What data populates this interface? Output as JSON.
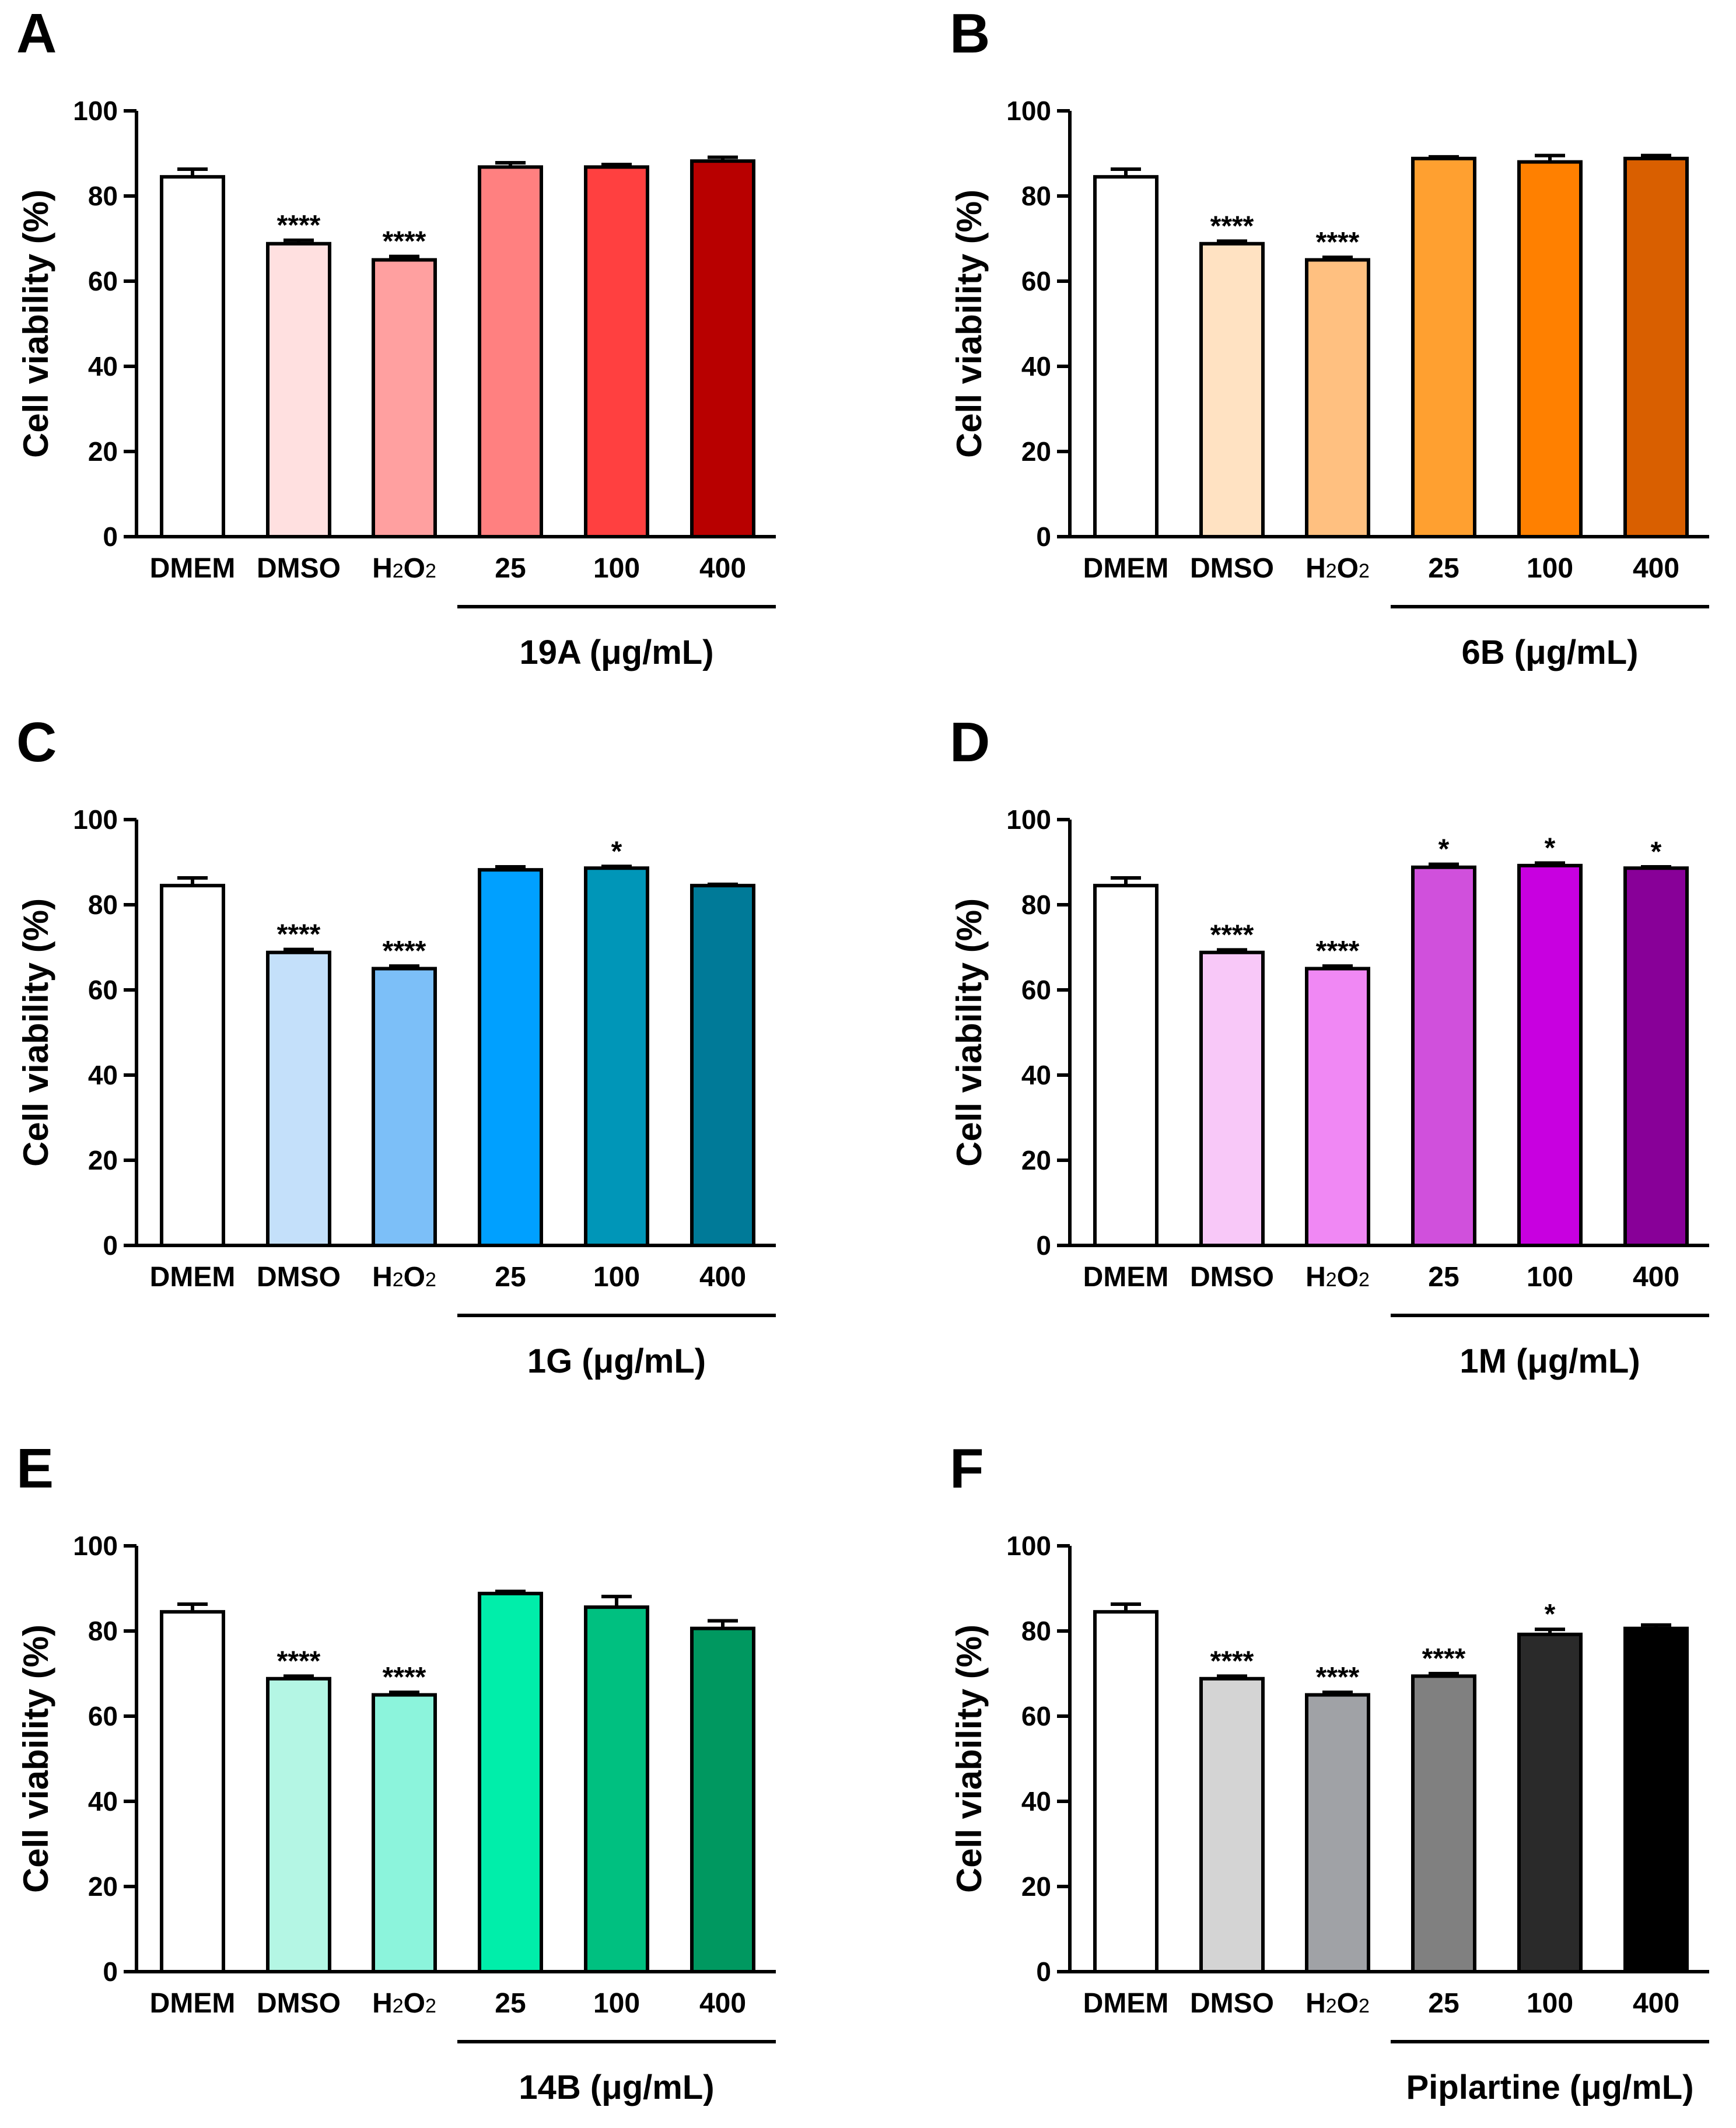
{
  "chart_data": [
    {
      "type": "bar",
      "panel": "A",
      "categories": [
        "DMEM",
        "DMSO",
        "H2O2",
        "25",
        "100",
        "400"
      ],
      "values": [
        84.5,
        68.8,
        65.0,
        86.8,
        86.8,
        88.2
      ],
      "errors": [
        1.8,
        0.8,
        0.8,
        1.0,
        0.6,
        0.9
      ],
      "significance": [
        "",
        "****",
        "****",
        "",
        "",
        ""
      ],
      "colors": [
        "#ffffff",
        "#ffe0e0",
        "#ffa0a0",
        "#ff8080",
        "#ff4040",
        "#b80000"
      ],
      "group_label": "19A (μg/mL)",
      "xlabel": "",
      "ylabel": "Cell viability (%)",
      "ylim": [
        0,
        100
      ],
      "yticks": [
        "0",
        "20",
        "40",
        "60",
        "80",
        "100"
      ]
    },
    {
      "type": "bar",
      "panel": "B",
      "categories": [
        "DMEM",
        "DMSO",
        "H2O2",
        "25",
        "100",
        "400"
      ],
      "values": [
        84.5,
        68.8,
        65.0,
        88.8,
        88.0,
        88.8
      ],
      "errors": [
        1.8,
        0.6,
        0.6,
        0.4,
        1.5,
        0.7
      ],
      "significance": [
        "",
        "****",
        "****",
        "",
        "",
        ""
      ],
      "colors": [
        "#ffffff",
        "#ffe2c2",
        "#ffc080",
        "#ffa030",
        "#ff8000",
        "#d95f00"
      ],
      "group_label": "6B (μg/mL)",
      "xlabel": "",
      "ylabel": "Cell viability (%)",
      "ylim": [
        0,
        100
      ],
      "yticks": [
        "0",
        "20",
        "40",
        "60",
        "80",
        "100"
      ]
    },
    {
      "type": "bar",
      "panel": "C",
      "categories": [
        "DMEM",
        "DMSO",
        "H2O2",
        "25",
        "100",
        "400"
      ],
      "values": [
        84.5,
        68.8,
        65.0,
        88.2,
        88.6,
        84.5
      ],
      "errors": [
        1.8,
        0.7,
        0.6,
        0.7,
        0.4,
        0.3
      ],
      "significance": [
        "",
        "****",
        "****",
        "",
        "*",
        ""
      ],
      "colors": [
        "#ffffff",
        "#c4e0fa",
        "#7cbff8",
        "#00a0ff",
        "#0096b8",
        "#007a98"
      ],
      "group_label": "1G (μg/mL)",
      "xlabel": "",
      "ylabel": "Cell viability (%)",
      "ylim": [
        0,
        100
      ],
      "yticks": [
        "0",
        "20",
        "40",
        "60",
        "80",
        "100"
      ]
    },
    {
      "type": "bar",
      "panel": "D",
      "categories": [
        "DMEM",
        "DMSO",
        "H2O2",
        "25",
        "100",
        "400"
      ],
      "values": [
        84.5,
        68.8,
        65.0,
        88.8,
        89.2,
        88.6
      ],
      "errors": [
        1.8,
        0.6,
        0.6,
        0.7,
        0.6,
        0.3
      ],
      "significance": [
        "",
        "****",
        "****",
        "*",
        "*",
        "*"
      ],
      "colors": [
        "#ffffff",
        "#f8c8f8",
        "#f088f4",
        "#d050dc",
        "#c800e0",
        "#880098"
      ],
      "group_label": "1M (μg/mL)",
      "xlabel": "",
      "ylabel": "Cell viability (%)",
      "ylim": [
        0,
        100
      ],
      "yticks": [
        "0",
        "20",
        "40",
        "60",
        "80",
        "100"
      ]
    },
    {
      "type": "bar",
      "panel": "E",
      "categories": [
        "DMEM",
        "DMSO",
        "H2O2",
        "25",
        "100",
        "400"
      ],
      "values": [
        84.5,
        68.8,
        65.0,
        88.8,
        85.6,
        80.6
      ],
      "errors": [
        1.8,
        0.6,
        0.6,
        0.5,
        2.5,
        1.8
      ],
      "significance": [
        "",
        "****",
        "****",
        "",
        "",
        ""
      ],
      "colors": [
        "#ffffff",
        "#b4f6e4",
        "#8cf4dc",
        "#00eeaa",
        "#00c080",
        "#009860"
      ],
      "group_label": "14B (μg/mL)",
      "xlabel": "",
      "ylabel": "Cell viability (%)",
      "ylim": [
        0,
        100
      ],
      "yticks": [
        "0",
        "20",
        "40",
        "60",
        "80",
        "100"
      ]
    },
    {
      "type": "bar",
      "panel": "F",
      "categories": [
        "DMEM",
        "DMSO",
        "H2O2",
        "25",
        "100",
        "400"
      ],
      "values": [
        84.5,
        68.8,
        65.0,
        69.4,
        79.2,
        80.6
      ],
      "errors": [
        1.8,
        0.6,
        0.6,
        0.6,
        1.2,
        0.8
      ],
      "significance": [
        "",
        "****",
        "****",
        "****",
        "*",
        ""
      ],
      "colors": [
        "#ffffff",
        "#d4d4d4",
        "#a0a2a6",
        "#808080",
        "#2a2a2a",
        "#000000"
      ],
      "group_label": "Piplartine (μg/mL)",
      "xlabel": "",
      "ylabel": "Cell viability (%)",
      "ylim": [
        0,
        100
      ],
      "yticks": [
        "0",
        "20",
        "40",
        "60",
        "80",
        "100"
      ]
    }
  ]
}
